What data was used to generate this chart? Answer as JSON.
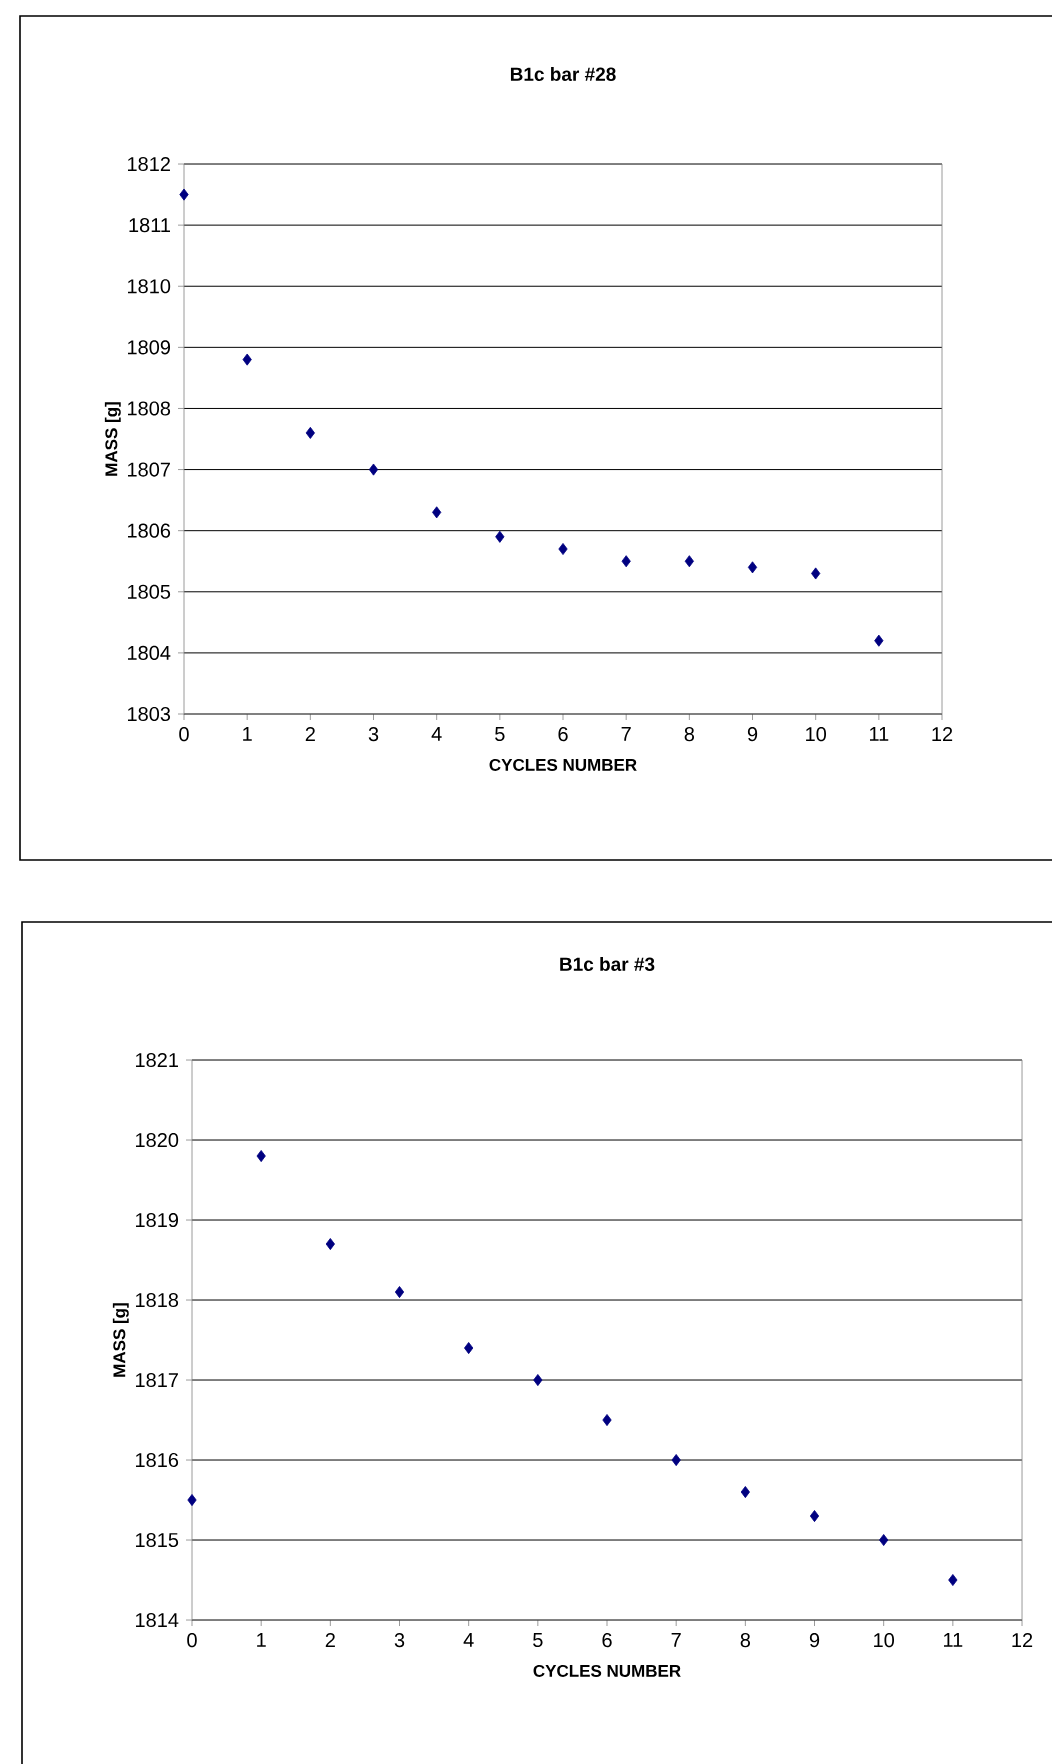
{
  "chart_data": [
    {
      "type": "scatter",
      "title": "B1c bar #28",
      "xlabel": "CYCLES NUMBER",
      "ylabel": "MASS [g]",
      "x": [
        0,
        1,
        2,
        3,
        4,
        5,
        6,
        7,
        8,
        9,
        10,
        11
      ],
      "series": [
        {
          "color": "#000080",
          "values": [
            1811.5,
            1808.8,
            1807.6,
            1807.0,
            1806.3,
            1805.9,
            1805.7,
            1805.5,
            1805.5,
            1805.4,
            1805.3,
            1804.2
          ]
        }
      ],
      "xlim": [
        0,
        12
      ],
      "ylim": [
        1803,
        1812
      ],
      "xticks": [
        0,
        1,
        2,
        3,
        4,
        5,
        6,
        7,
        8,
        9,
        10,
        11,
        12
      ],
      "yticks": [
        1803,
        1804,
        1805,
        1806,
        1807,
        1808,
        1809,
        1810,
        1811,
        1812
      ],
      "grid": "y",
      "marker": "diamond"
    },
    {
      "type": "scatter",
      "title": "B1c bar #3",
      "xlabel": "CYCLES NUMBER",
      "ylabel": "MASS [g]",
      "x": [
        0,
        1,
        2,
        3,
        4,
        5,
        6,
        7,
        8,
        9,
        10,
        11
      ],
      "series": [
        {
          "color": "#000080",
          "values": [
            1815.5,
            1819.8,
            1818.7,
            1818.1,
            1817.4,
            1817.0,
            1816.5,
            1816.0,
            1815.6,
            1815.3,
            1815.0,
            1814.5
          ]
        }
      ],
      "xlim": [
        0,
        12
      ],
      "ylim": [
        1814,
        1821
      ],
      "xticks": [
        0,
        1,
        2,
        3,
        4,
        5,
        6,
        7,
        8,
        9,
        10,
        11,
        12
      ],
      "yticks": [
        1814,
        1815,
        1816,
        1817,
        1818,
        1819,
        1820,
        1821
      ],
      "grid": "y",
      "marker": "diamond"
    }
  ]
}
